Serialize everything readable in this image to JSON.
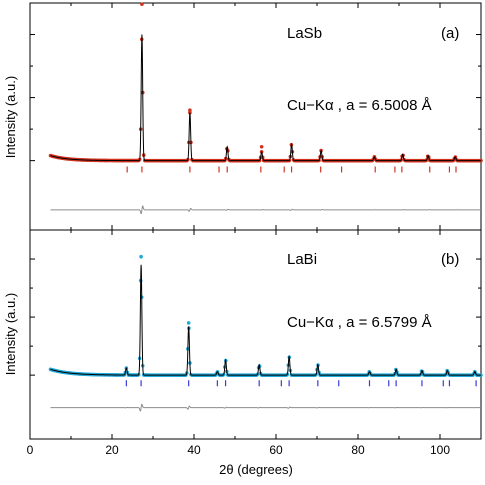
{
  "chart_data": [
    {
      "type": "line",
      "panel_label": "(a)",
      "compound": "LaSb",
      "annotation": "Cu−Kα , a = 6.5008 Å",
      "ylabel": "Intensity (a.u.)",
      "xlabel": "",
      "xlim": [
        0,
        110
      ],
      "ylim": [
        -0.55,
        1.25
      ],
      "grid": false,
      "colors": {
        "observed": "#d4321e",
        "calculated": "#000000",
        "reflections": "#d4321e",
        "difference": "#8c8c8c"
      },
      "series": [
        {
          "role": "observed",
          "x": [],
          "y": []
        },
        {
          "role": "calculated",
          "x": [],
          "y": []
        },
        {
          "role": "difference",
          "x": [],
          "y": []
        }
      ],
      "background": {
        "level": 0.0,
        "low_angle_excess": 0.04,
        "decay": 0.25
      },
      "peak_width": 0.18,
      "peaks": [
        {
          "pos": 27.3,
          "height": 1.0,
          "obs_max": 1.24
        },
        {
          "pos": 39.0,
          "height": 0.38,
          "obs_max": 0.4
        },
        {
          "pos": 48.1,
          "height": 0.11
        },
        {
          "pos": 56.5,
          "height": 0.07,
          "obs_max": 0.11
        },
        {
          "pos": 63.8,
          "height": 0.13
        },
        {
          "pos": 71.0,
          "height": 0.08
        },
        {
          "pos": 84.0,
          "height": 0.03
        },
        {
          "pos": 90.9,
          "height": 0.05
        },
        {
          "pos": 97.1,
          "height": 0.04
        },
        {
          "pos": 103.7,
          "height": 0.03
        }
      ],
      "reflection_positions": [
        23.7,
        27.3,
        39.0,
        46.1,
        48.1,
        56.3,
        62.0,
        63.8,
        70.9,
        76.0,
        84.2,
        89.0,
        90.7,
        97.5,
        102.3,
        103.9
      ],
      "reflection_level": -0.07,
      "difference_level": -0.39
    },
    {
      "type": "line",
      "panel_label": "(b)",
      "compound": "LaBi",
      "annotation": "Cu−Kα , a = 6.5799 Å",
      "ylabel": "Intensity (a.u.)",
      "xlabel": "2θ (degrees)",
      "xlim": [
        0,
        110
      ],
      "ylim": [
        -0.55,
        1.25
      ],
      "xticks": [
        0,
        20,
        40,
        60,
        80,
        100
      ],
      "grid": false,
      "colors": {
        "observed": "#1fa8d8",
        "calculated": "#000000",
        "reflections": "#3a3ad8",
        "difference": "#8c8c8c"
      },
      "series": [
        {
          "role": "observed",
          "x": [],
          "y": []
        },
        {
          "role": "calculated",
          "x": [],
          "y": []
        },
        {
          "role": "difference",
          "x": [],
          "y": []
        }
      ],
      "background": {
        "level": 0.0,
        "low_angle_excess": 0.05,
        "decay": 0.22
      },
      "peak_width": 0.18,
      "peaks": [
        {
          "pos": 23.5,
          "height": 0.06
        },
        {
          "pos": 27.1,
          "height": 0.95,
          "obs_max": 1.02
        },
        {
          "pos": 38.7,
          "height": 0.42,
          "obs_max": 0.45
        },
        {
          "pos": 45.7,
          "height": 0.03
        },
        {
          "pos": 47.7,
          "height": 0.13
        },
        {
          "pos": 55.9,
          "height": 0.09
        },
        {
          "pos": 63.2,
          "height": 0.16
        },
        {
          "pos": 70.2,
          "height": 0.09
        },
        {
          "pos": 82.8,
          "height": 0.03
        },
        {
          "pos": 89.3,
          "height": 0.05
        },
        {
          "pos": 95.6,
          "height": 0.04
        },
        {
          "pos": 101.8,
          "height": 0.04
        },
        {
          "pos": 108.5,
          "height": 0.03
        }
      ],
      "reflection_positions": [
        23.5,
        27.1,
        38.7,
        45.7,
        47.7,
        55.9,
        61.3,
        63.2,
        70.2,
        75.3,
        82.8,
        87.5,
        89.3,
        95.6,
        100.8,
        102.3,
        108.8
      ],
      "reflection_level": -0.07,
      "difference_level": -0.28
    }
  ]
}
